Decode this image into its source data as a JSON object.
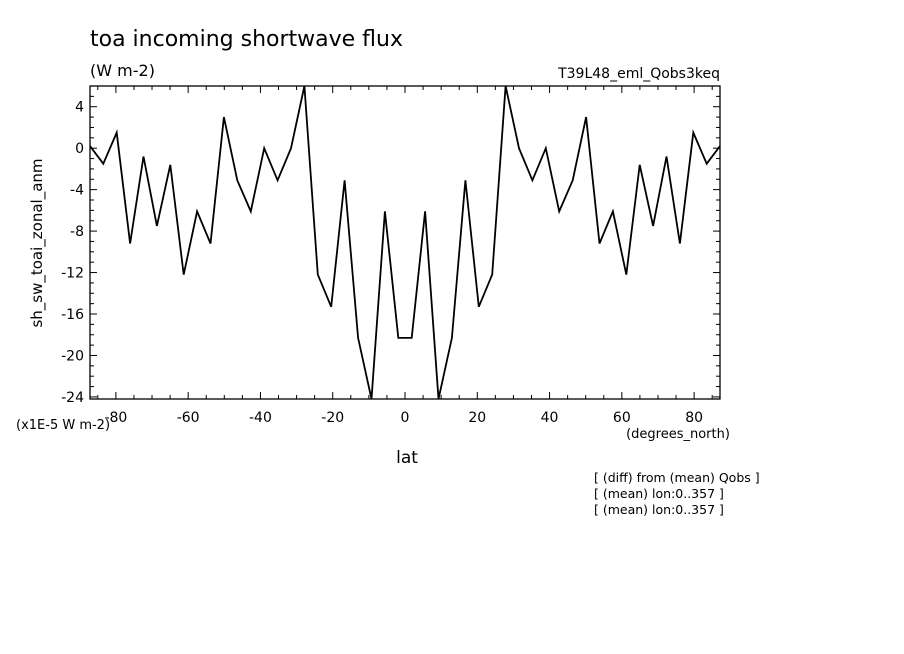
{
  "chart_data": {
    "type": "line",
    "title": "toa incoming shortwave flux",
    "subtitle": "(W m-2)",
    "run_label": "T39L48_eml_Qobs3keq",
    "xlabel": "lat",
    "x_units": "(degrees_north)",
    "ylabel": "sh_sw_toai_zonal_anm",
    "y_scale_note": "(x1E-5 W m-2)",
    "xlim": [
      -87.16,
      87.16
    ],
    "ylim": [
      -24.2,
      6
    ],
    "x_ticks": [
      -80,
      -60,
      -40,
      -20,
      0,
      20,
      40,
      60,
      80
    ],
    "x_tick_labels": [
      "-80",
      "-60",
      "-40",
      "-20",
      "0",
      "20",
      "40",
      "60",
      "80"
    ],
    "y_ticks": [
      4,
      0,
      -4,
      -8,
      -12,
      -16,
      -20,
      -24
    ],
    "y_tick_labels": [
      "4",
      "0",
      "-4",
      "-8",
      "-12",
      "-16",
      "-20",
      "-24"
    ],
    "grid": false,
    "series": [
      {
        "color": "#000000",
        "x": [
          -87.16,
          -83.48,
          -79.78,
          -76.07,
          -72.36,
          -68.65,
          -64.94,
          -61.23,
          -57.52,
          -53.81,
          -50.1,
          -46.39,
          -42.68,
          -38.97,
          -35.26,
          -31.54,
          -27.83,
          -24.12,
          -20.41,
          -16.7,
          -12.99,
          -9.28,
          -5.57,
          -1.86,
          1.86,
          5.57,
          9.28,
          12.99,
          16.7,
          20.41,
          24.12,
          27.83,
          31.54,
          35.26,
          38.97,
          42.68,
          46.39,
          50.1,
          53.81,
          57.52,
          61.23,
          64.94,
          68.65,
          72.36,
          76.07,
          79.78,
          83.48,
          87.16
        ],
        "values": [
          0.2,
          -1.5,
          1.5,
          -9.2,
          -0.8,
          -7.5,
          -1.6,
          -12.2,
          -6.1,
          -9.2,
          3.0,
          -3.1,
          -6.1,
          0.0,
          -3.1,
          0.0,
          6.0,
          -12.2,
          -15.3,
          -3.1,
          -18.3,
          -24.2,
          -6.1,
          -18.3,
          -18.3,
          -6.1,
          -24.2,
          -18.3,
          -3.1,
          -15.3,
          -12.2,
          6.0,
          0.0,
          -3.1,
          0.0,
          -6.1,
          -3.1,
          3.0,
          -9.2,
          -6.1,
          -12.2,
          -1.6,
          -7.5,
          -0.8,
          -9.2,
          1.5,
          -1.5,
          0.2
        ]
      }
    ]
  },
  "annotations": [
    "[ (diff) from (mean) Qobs ]",
    "[ (mean) lon:0..357 ]",
    "[ (mean) lon:0..357 ]"
  ]
}
